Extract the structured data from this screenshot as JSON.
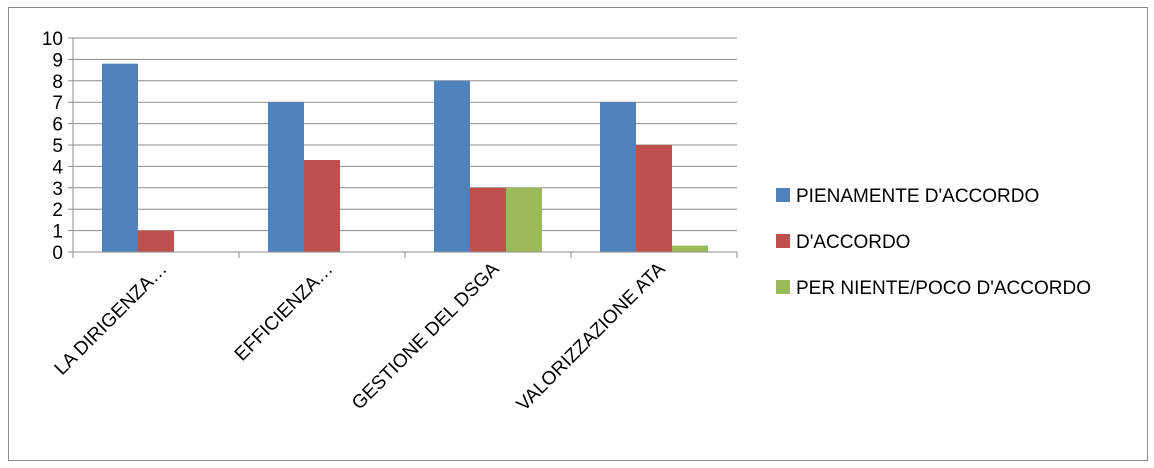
{
  "chart_data": {
    "type": "bar",
    "categories": [
      "LA DIRIGENZA…",
      "EFFICIENZA…",
      "GESTIONE DEL DSGA",
      "VALORIZZAZIONE ATA"
    ],
    "series": [
      {
        "name": "PIENAMENTE D'ACCORDO",
        "values": [
          8.8,
          7,
          8,
          7
        ],
        "color": "#4F81BD"
      },
      {
        "name": "D'ACCORDO",
        "values": [
          1,
          4.3,
          3,
          5
        ],
        "color": "#C0504D"
      },
      {
        "name": "PER NIENTE/POCO D'ACCORDO",
        "values": [
          0,
          0,
          3,
          0.3
        ],
        "color": "#9BBB59"
      }
    ],
    "ylim": [
      0,
      10
    ],
    "yticks": [
      "0",
      "1",
      "2",
      "3",
      "4",
      "5",
      "6",
      "7",
      "8",
      "9",
      "10"
    ],
    "grid": true,
    "legend_position": "right"
  }
}
